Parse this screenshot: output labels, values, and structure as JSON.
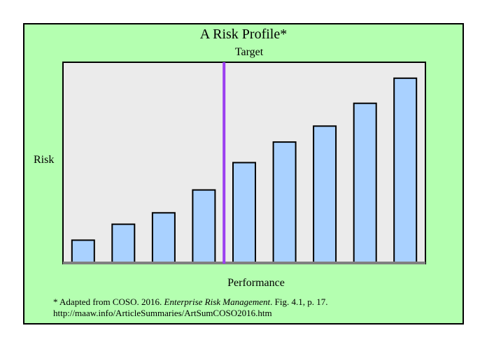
{
  "chart_data": {
    "type": "bar",
    "title": "A Risk Profile*",
    "xlabel": "Performance",
    "ylabel": "Risk",
    "target_label": "Target",
    "target_position": 4.5,
    "values": [
      1.0,
      1.7,
      2.2,
      3.2,
      4.4,
      5.3,
      6.0,
      7.0,
      8.1
    ],
    "ylim": [
      0,
      8.8
    ],
    "grid": false,
    "colors": {
      "bar": "#a9d1ff",
      "target_line": "#9b3ff0",
      "plot_bg": "#ebebeb",
      "frame_bg": "#b4ffb0",
      "axis": "#808080"
    }
  },
  "footnote": {
    "prefix": "* Adapted from COSO. 2016. ",
    "italic": "Enterprise Risk Management",
    "suffix": ". Fig.  4.1, p. 17.",
    "url": "http://maaw.info/ArticleSummaries/ArtSumCOSO2016.htm"
  }
}
